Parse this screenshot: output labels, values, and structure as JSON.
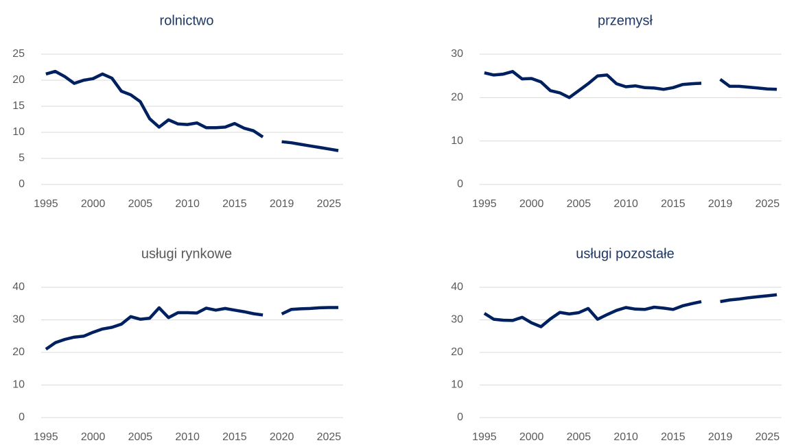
{
  "chart_data": [
    {
      "type": "line",
      "title": "rolnictwo",
      "title_color": "#1f3864",
      "color": "#002060",
      "grid": true,
      "categories": [
        "1995",
        null,
        null,
        null,
        null,
        "2000",
        null,
        null,
        null,
        null,
        "2005",
        null,
        null,
        null,
        null,
        "2010",
        null,
        null,
        null,
        null,
        "2015",
        null,
        null,
        null,
        null,
        "2019",
        null,
        null,
        null,
        null,
        "2025",
        null
      ],
      "values": [
        21.2,
        21.7,
        20.7,
        19.4,
        20.0,
        20.3,
        21.2,
        20.4,
        17.9,
        17.2,
        15.9,
        12.6,
        11.0,
        12.4,
        11.6,
        11.5,
        11.8,
        10.9,
        10.9,
        11.0,
        11.7,
        10.8,
        10.3,
        9.1,
        null,
        8.2,
        8.0,
        7.7,
        7.4,
        7.1,
        6.8,
        6.5
      ],
      "ylim": [
        0,
        25
      ],
      "yticks": [
        0,
        5,
        10,
        15,
        20,
        25
      ]
    },
    {
      "type": "line",
      "title": "przemysł",
      "title_color": "#1f3864",
      "color": "#002060",
      "grid": true,
      "categories": [
        "1995",
        null,
        null,
        null,
        null,
        "2000",
        null,
        null,
        null,
        null,
        "2005",
        null,
        null,
        null,
        null,
        "2010",
        null,
        null,
        null,
        null,
        "2015",
        null,
        null,
        null,
        null,
        "2019",
        null,
        null,
        null,
        null,
        "2025",
        null
      ],
      "values": [
        25.7,
        25.2,
        25.4,
        26.0,
        24.3,
        24.4,
        23.6,
        21.6,
        21.1,
        20.0,
        21.6,
        23.2,
        25.0,
        25.2,
        23.2,
        22.5,
        22.7,
        22.3,
        22.2,
        21.9,
        22.3,
        23.0,
        23.2,
        23.3,
        null,
        24.2,
        22.6,
        22.6,
        22.4,
        22.2,
        22.0,
        21.9
      ],
      "ylim": [
        0,
        30
      ],
      "yticks": [
        0,
        10,
        20,
        30
      ]
    },
    {
      "type": "line",
      "title": "usługi rynkowe",
      "title_color": "#595959",
      "color": "#002060",
      "grid": true,
      "categories": [
        "1995",
        null,
        null,
        null,
        null,
        "2000",
        null,
        null,
        null,
        null,
        "2005",
        null,
        null,
        null,
        null,
        "2010",
        null,
        null,
        null,
        null,
        "2015",
        null,
        null,
        null,
        null,
        "2020",
        null,
        null,
        null,
        null,
        "2025",
        null
      ],
      "values": [
        21.0,
        23.0,
        24.0,
        24.7,
        25.0,
        26.2,
        27.2,
        27.7,
        28.7,
        31.0,
        30.2,
        30.5,
        33.7,
        30.7,
        32.2,
        32.2,
        32.1,
        33.6,
        33.0,
        33.5,
        33.0,
        32.5,
        31.9,
        31.5,
        null,
        31.8,
        33.2,
        33.4,
        33.5,
        33.7,
        33.8,
        33.8
      ],
      "ylim": [
        0,
        40
      ],
      "yticks": [
        0,
        10,
        20,
        30,
        40
      ]
    },
    {
      "type": "line",
      "title": "usługi pozostałe",
      "title_color": "#1f3864",
      "color": "#002060",
      "grid": true,
      "categories": [
        "1995",
        null,
        null,
        null,
        null,
        "2000",
        null,
        null,
        null,
        null,
        "2005",
        null,
        null,
        null,
        null,
        "2010",
        null,
        null,
        null,
        null,
        "2015",
        null,
        null,
        null,
        null,
        "2019",
        null,
        null,
        null,
        null,
        "2025",
        null
      ],
      "values": [
        32.0,
        30.2,
        29.9,
        29.8,
        30.8,
        29.1,
        27.9,
        30.3,
        32.3,
        31.8,
        32.2,
        33.5,
        30.2,
        31.6,
        32.9,
        33.8,
        33.3,
        33.2,
        33.9,
        33.6,
        33.2,
        34.3,
        35.0,
        35.6,
        null,
        35.6,
        36.1,
        36.4,
        36.8,
        37.1,
        37.4,
        37.7
      ],
      "ylim": [
        0,
        40
      ],
      "yticks": [
        0,
        10,
        20,
        30,
        40
      ]
    }
  ]
}
